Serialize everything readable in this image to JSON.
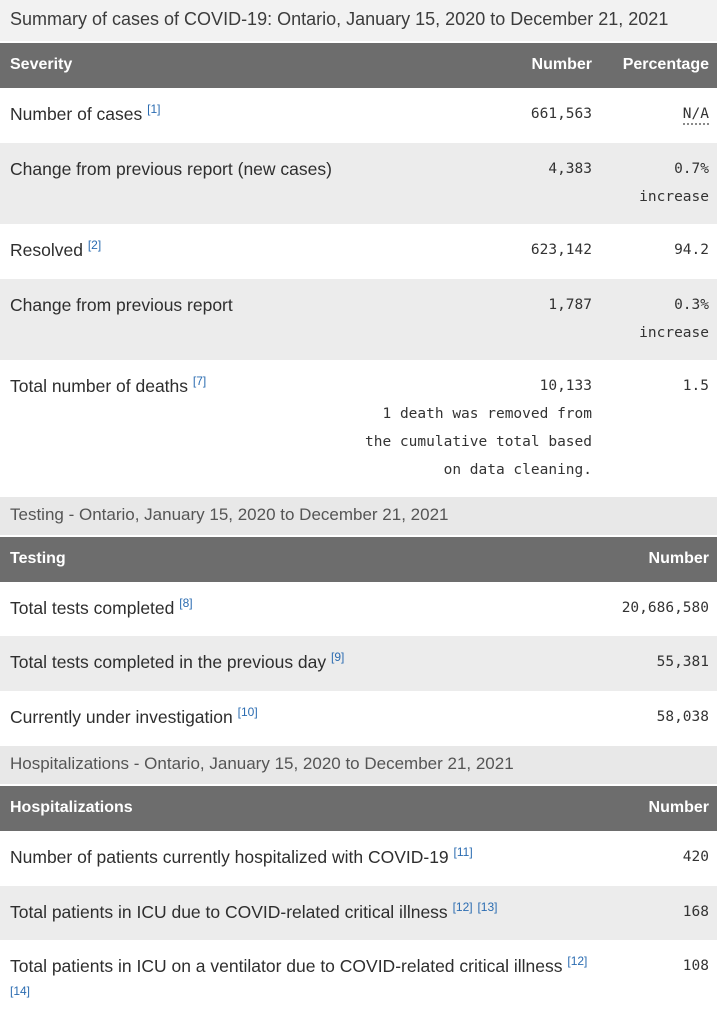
{
  "page": {
    "title": "Summary of cases of COVID-19: Ontario, January 15, 2020 to December 21, 2021"
  },
  "colors": {
    "table_header_bg": "#6d6d6d",
    "table_header_text": "#ffffff",
    "striped_row_bg": "#ececec",
    "section_heading_bg": "#e8e8e8",
    "footnote_link_blue": "#2b6cb1",
    "body_text": "#2e2e2e"
  },
  "tables": [
    {
      "section_heading": null,
      "columns": [
        "Severity",
        "Number",
        "Percentage"
      ],
      "rows": [
        {
          "label": "Number of cases",
          "refs": [
            "1"
          ],
          "number": "661,563",
          "percentage": "N/A",
          "percentage_abbr": true
        },
        {
          "label": "Change from previous report (new cases)",
          "refs": [],
          "number": "4,383",
          "percentage": "0.7% increase"
        },
        {
          "label": "Resolved",
          "refs": [
            "2"
          ],
          "number": "623,142",
          "percentage": "94.2"
        },
        {
          "label": "Change from previous report",
          "refs": [],
          "number": "1,787",
          "percentage": "0.3% increase"
        },
        {
          "label": "Total number of deaths",
          "refs": [
            "7"
          ],
          "number": "10,133",
          "number_note": "1 death was removed from the cumulative total based on data cleaning.",
          "percentage": "1.5"
        }
      ]
    },
    {
      "section_heading": "Testing - Ontario, January 15, 2020 to December 21, 2021",
      "columns": [
        "Testing",
        "Number"
      ],
      "rows": [
        {
          "label": "Total tests completed",
          "refs": [
            "8"
          ],
          "number": "20,686,580"
        },
        {
          "label": "Total tests completed in the previous day",
          "refs": [
            "9"
          ],
          "number": "55,381"
        },
        {
          "label": "Currently under investigation",
          "refs": [
            "10"
          ],
          "number": "58,038"
        }
      ]
    },
    {
      "section_heading": "Hospitalizations - Ontario, January 15, 2020 to December 21, 2021",
      "columns": [
        "Hospitalizations",
        "Number"
      ],
      "rows": [
        {
          "label": "Number of patients currently hospitalized with COVID-19",
          "refs": [
            "11"
          ],
          "number": "420"
        },
        {
          "label": "Total patients in ICU due to COVID-related critical illness",
          "refs": [
            "12",
            "13"
          ],
          "number": "168"
        },
        {
          "label": "Total patients in ICU on a ventilator due to COVID-related critical illness",
          "refs": [
            "12",
            "14"
          ],
          "number": "108"
        }
      ]
    }
  ]
}
